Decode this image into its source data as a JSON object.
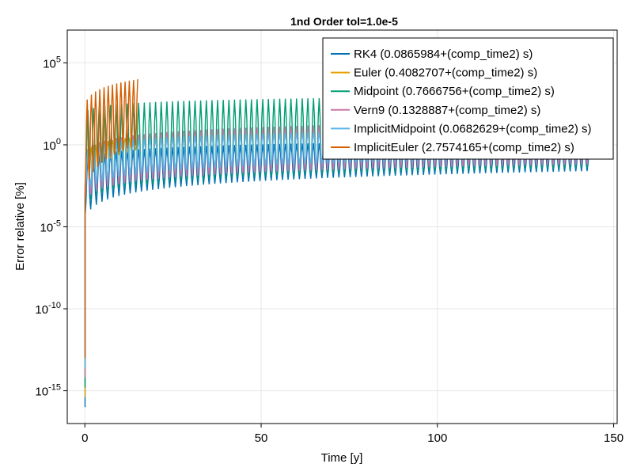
{
  "chart_data": {
    "type": "line",
    "title": "1nd Order tol=1.0e-5",
    "xlabel": "Time [y]",
    "ylabel": "Error relative [%]",
    "xlim": [
      -5,
      151
    ],
    "ylim_log10": [
      -17,
      7
    ],
    "y_scale": "log10",
    "x_ticks": [
      0,
      50,
      100,
      150
    ],
    "x_tick_labels": [
      "0",
      "50",
      "100",
      "150"
    ],
    "y_tick_exponents": [
      5,
      0,
      -5,
      -10,
      -15
    ],
    "y_tick_labels": [
      {
        "base": "10",
        "exp": "5"
      },
      {
        "base": "10",
        "exp": "0"
      },
      {
        "base": "10",
        "exp": "-5"
      },
      {
        "base": "10",
        "exp": "-10"
      },
      {
        "base": "10",
        "exp": "-15"
      }
    ],
    "grid": true,
    "legend_position": "top-right",
    "series": [
      {
        "name": "RK4 (0.0865984+(comp_time2) s)",
        "color": "#0072b2",
        "t_end": 143,
        "log_min_start": -4.5,
        "log_min_end": -1.6,
        "log_max_start": -1.0,
        "log_max_end": 0.3,
        "osc_period": 1.6
      },
      {
        "name": "Euler (0.4082707+(comp_time2) s)",
        "color": "#e69f00",
        "t_end": 15,
        "log_min_start": -2.5,
        "log_min_end": -0.3,
        "log_max_start": -0.5,
        "log_max_end": 0.5,
        "osc_period": 1.2
      },
      {
        "name": "Midpoint (0.7666756+(comp_time2) s)",
        "color": "#009e73",
        "t_end": 143,
        "log_min_start": -3.8,
        "log_min_end": -1.4,
        "log_max_start": 2.0,
        "log_max_end": 3.0,
        "osc_period": 1.6
      },
      {
        "name": "Vern9 (0.1328887+(comp_time2) s)",
        "color": "#cc79a7",
        "t_end": 143,
        "log_min_start": -3.5,
        "log_min_end": -1.2,
        "log_max_start": -0.5,
        "log_max_end": 1.5,
        "osc_period": 1.6
      },
      {
        "name": "ImplicitMidpoint (0.0682629+(comp_time2) s)",
        "color": "#56b4e9",
        "t_end": 143,
        "log_min_start": -3.0,
        "log_min_end": -0.8,
        "log_max_start": -0.5,
        "log_max_end": 1.0,
        "osc_period": 1.6
      },
      {
        "name": "ImplicitEuler (2.7574165+(comp_time2) s)",
        "color": "#d55e00",
        "t_end": 15,
        "log_min_start": -3.0,
        "log_min_end": 0.0,
        "log_max_start": 2.5,
        "log_max_end": 4.0,
        "osc_period": 1.2
      }
    ]
  }
}
